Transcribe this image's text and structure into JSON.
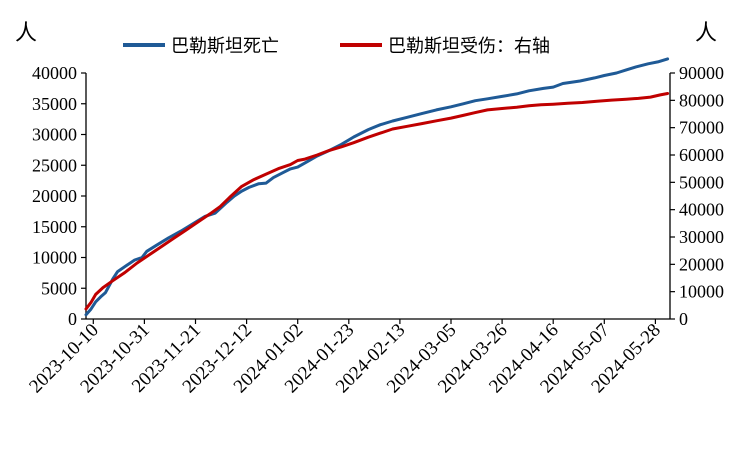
{
  "chart_data": {
    "type": "line",
    "left_unit": "人",
    "right_unit": "人",
    "y_left": {
      "min": 0,
      "max": 40000,
      "ticks": [
        "0",
        "5000",
        "10000",
        "15000",
        "20000",
        "25000",
        "30000",
        "35000",
        "40000"
      ]
    },
    "y_right": {
      "min": 0,
      "max": 90000,
      "ticks": [
        "0",
        "10000",
        "20000",
        "30000",
        "40000",
        "50000",
        "60000",
        "70000",
        "80000",
        "90000"
      ]
    },
    "x_range": [
      "2023-10-07",
      "2024-06-03"
    ],
    "x_ticks": [
      "2023-10-10",
      "2023-10-31",
      "2023-11-21",
      "2023-12-12",
      "2024-01-02",
      "2024-01-23",
      "2024-02-13",
      "2024-03-05",
      "2024-03-26",
      "2024-04-16",
      "2024-05-07",
      "2024-05-28"
    ],
    "legend_position": "top",
    "series": [
      {
        "name": "巴勒斯坦死亡",
        "axis": "left",
        "color": "#1f5a96",
        "points": [
          [
            "2023-10-07",
            700
          ],
          [
            "2023-10-09",
            1600
          ],
          [
            "2023-10-11",
            2800
          ],
          [
            "2023-10-13",
            3600
          ],
          [
            "2023-10-15",
            4300
          ],
          [
            "2023-10-18",
            6500
          ],
          [
            "2023-10-20",
            7700
          ],
          [
            "2023-10-24",
            8800
          ],
          [
            "2023-10-27",
            9600
          ],
          [
            "2023-10-30",
            10000
          ],
          [
            "2023-11-01",
            11000
          ],
          [
            "2023-11-05",
            12000
          ],
          [
            "2023-11-10",
            13200
          ],
          [
            "2023-11-15",
            14300
          ],
          [
            "2023-11-20",
            15500
          ],
          [
            "2023-11-25",
            16700
          ],
          [
            "2023-11-29",
            17200
          ],
          [
            "2023-12-01",
            17900
          ],
          [
            "2023-12-04",
            19000
          ],
          [
            "2023-12-07",
            20000
          ],
          [
            "2023-12-10",
            20800
          ],
          [
            "2023-12-13",
            21400
          ],
          [
            "2023-12-17",
            22000
          ],
          [
            "2023-12-20",
            22100
          ],
          [
            "2023-12-23",
            23000
          ],
          [
            "2023-12-27",
            23800
          ],
          [
            "2023-12-30",
            24400
          ],
          [
            "2024-01-02",
            24700
          ],
          [
            "2024-01-06",
            25600
          ],
          [
            "2024-01-10",
            26500
          ],
          [
            "2024-01-15",
            27400
          ],
          [
            "2024-01-20",
            28400
          ],
          [
            "2024-01-25",
            29600
          ],
          [
            "2024-01-31",
            30800
          ],
          [
            "2024-02-05",
            31600
          ],
          [
            "2024-02-10",
            32200
          ],
          [
            "2024-02-16",
            32800
          ],
          [
            "2024-02-22",
            33400
          ],
          [
            "2024-02-28",
            34000
          ],
          [
            "2024-03-05",
            34500
          ],
          [
            "2024-03-10",
            35000
          ],
          [
            "2024-03-15",
            35500
          ],
          [
            "2024-03-20",
            35800
          ],
          [
            "2024-03-26",
            36200
          ],
          [
            "2024-04-01",
            36600
          ],
          [
            "2024-04-06",
            37100
          ],
          [
            "2024-04-12",
            37500
          ],
          [
            "2024-04-16",
            37700
          ],
          [
            "2024-04-20",
            38300
          ],
          [
            "2024-04-27",
            38700
          ],
          [
            "2024-05-03",
            39200
          ],
          [
            "2024-05-07",
            39600
          ],
          [
            "2024-05-12",
            40000
          ],
          [
            "2024-05-16",
            40500
          ],
          [
            "2024-05-20",
            41000
          ],
          [
            "2024-05-25",
            41500
          ],
          [
            "2024-05-29",
            41800
          ],
          [
            "2024-06-02",
            42300
          ]
        ]
      },
      {
        "name": "巴勒斯坦受伤：右轴",
        "axis": "right",
        "color": "#c00000",
        "points": [
          [
            "2023-10-07",
            3700
          ],
          [
            "2023-10-09",
            6000
          ],
          [
            "2023-10-11",
            9000
          ],
          [
            "2023-10-14",
            11500
          ],
          [
            "2023-10-18",
            14000
          ],
          [
            "2023-10-23",
            17000
          ],
          [
            "2023-10-28",
            20500
          ],
          [
            "2023-11-02",
            23500
          ],
          [
            "2023-11-07",
            26500
          ],
          [
            "2023-11-12",
            29500
          ],
          [
            "2023-11-17",
            32500
          ],
          [
            "2023-11-22",
            35500
          ],
          [
            "2023-11-27",
            38500
          ],
          [
            "2023-12-01",
            41000
          ],
          [
            "2023-12-05",
            44500
          ],
          [
            "2023-12-10",
            48500
          ],
          [
            "2023-12-15",
            51000
          ],
          [
            "2023-12-20",
            53000
          ],
          [
            "2023-12-25",
            55000
          ],
          [
            "2023-12-30",
            56500
          ],
          [
            "2024-01-02",
            58000
          ],
          [
            "2024-01-05",
            58500
          ],
          [
            "2024-01-10",
            60000
          ],
          [
            "2024-01-15",
            61700
          ],
          [
            "2024-01-20",
            63000
          ],
          [
            "2024-01-25",
            64500
          ],
          [
            "2024-01-31",
            66500
          ],
          [
            "2024-02-05",
            68000
          ],
          [
            "2024-02-10",
            69500
          ],
          [
            "2024-02-16",
            70500
          ],
          [
            "2024-02-22",
            71500
          ],
          [
            "2024-02-28",
            72500
          ],
          [
            "2024-03-05",
            73500
          ],
          [
            "2024-03-10",
            74500
          ],
          [
            "2024-03-15",
            75500
          ],
          [
            "2024-03-20",
            76500
          ],
          [
            "2024-03-26",
            77000
          ],
          [
            "2024-04-01",
            77500
          ],
          [
            "2024-04-06",
            78000
          ],
          [
            "2024-04-11",
            78400
          ],
          [
            "2024-04-16",
            78600
          ],
          [
            "2024-04-22",
            78900
          ],
          [
            "2024-04-28",
            79200
          ],
          [
            "2024-05-04",
            79700
          ],
          [
            "2024-05-10",
            80100
          ],
          [
            "2024-05-16",
            80400
          ],
          [
            "2024-05-21",
            80700
          ],
          [
            "2024-05-26",
            81200
          ],
          [
            "2024-05-30",
            82000
          ],
          [
            "2024-06-02",
            82500
          ]
        ]
      }
    ]
  }
}
